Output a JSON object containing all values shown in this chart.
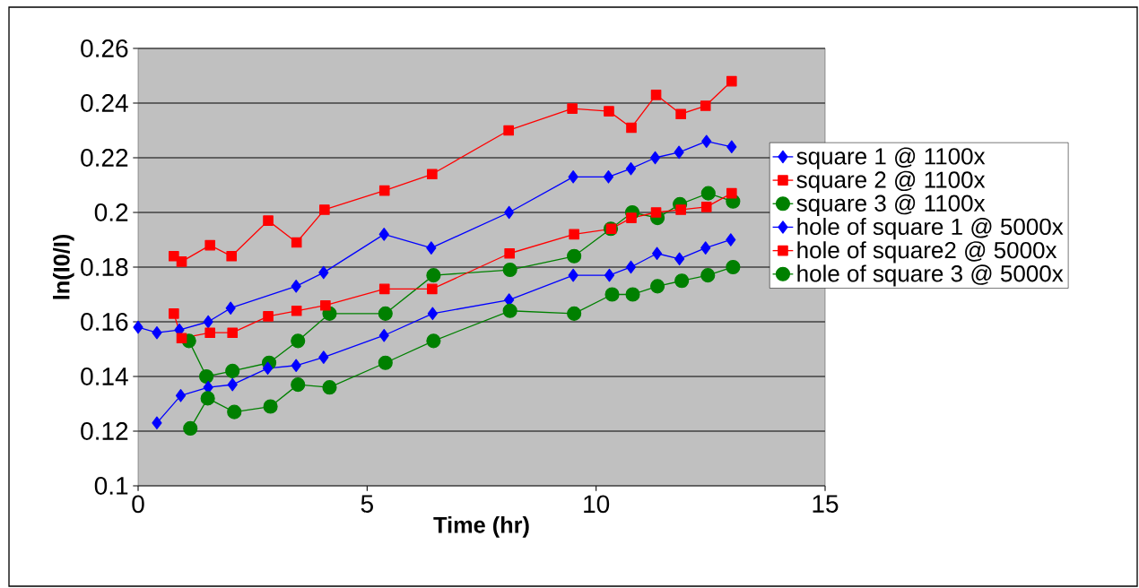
{
  "chart_data": {
    "type": "line",
    "xlabel": "Time (hr)",
    "ylabel": "ln(I0/I)",
    "xlim": [
      0,
      15
    ],
    "xticks": [
      0,
      5,
      10,
      15
    ],
    "ylim": [
      0.1,
      0.26
    ],
    "yticks": [
      0.1,
      0.12,
      0.14,
      0.16,
      0.18,
      0.2,
      0.22,
      0.24,
      0.26
    ],
    "grid": "y",
    "legend": "right",
    "series": [
      {
        "name": "square 1 @ 1100x",
        "color": "#0000ff",
        "marker": "diamond",
        "x": [
          0,
          0.41,
          0.9,
          1.53,
          2.02,
          3.45,
          4.05,
          5.37,
          6.4,
          8.1,
          9.5,
          10.27,
          10.76,
          11.29,
          11.81,
          12.41,
          12.96
        ],
        "values": [
          0.158,
          0.156,
          0.157,
          0.16,
          0.165,
          0.173,
          0.178,
          0.192,
          0.187,
          0.2,
          0.213,
          0.213,
          0.216,
          0.22,
          0.222,
          0.226,
          0.224
        ]
      },
      {
        "name": "square 2 @ 1100x",
        "color": "#ff0000",
        "marker": "square",
        "x": [
          0.78,
          0.95,
          1.57,
          2.04,
          2.84,
          3.46,
          4.07,
          5.38,
          6.42,
          8.09,
          9.48,
          10.28,
          10.77,
          11.31,
          11.85,
          12.39,
          12.96
        ],
        "values": [
          0.184,
          0.182,
          0.188,
          0.184,
          0.197,
          0.189,
          0.201,
          0.208,
          0.214,
          0.23,
          0.238,
          0.237,
          0.231,
          0.243,
          0.236,
          0.239,
          0.248
        ]
      },
      {
        "name": "square 3 @ 1100x",
        "color": "#008000",
        "marker": "circle",
        "x": [
          1.11,
          1.49,
          2.06,
          2.86,
          3.49,
          4.18,
          5.4,
          6.45,
          8.12,
          9.52,
          10.32,
          10.79,
          11.34,
          11.83,
          12.45,
          12.99
        ],
        "values": [
          0.153,
          0.14,
          0.142,
          0.145,
          0.153,
          0.163,
          0.163,
          0.177,
          0.179,
          0.184,
          0.194,
          0.2,
          0.198,
          0.203,
          0.207,
          0.204
        ]
      },
      {
        "name": "hole of square 1 @ 5000x",
        "color": "#0000ff",
        "marker": "diamond",
        "x": [
          0.41,
          0.93,
          1.53,
          2.06,
          2.83,
          3.45,
          4.05,
          5.37,
          6.43,
          8.1,
          9.5,
          10.29,
          10.76,
          11.33,
          11.82,
          12.39,
          12.94
        ],
        "values": [
          0.123,
          0.133,
          0.136,
          0.137,
          0.143,
          0.144,
          0.147,
          0.155,
          0.163,
          0.168,
          0.177,
          0.177,
          0.18,
          0.185,
          0.183,
          0.187,
          0.19
        ]
      },
      {
        "name": "hole of square2 @ 5000x",
        "color": "#ff0000",
        "marker": "square",
        "x": [
          0.78,
          0.95,
          1.57,
          2.06,
          2.84,
          3.46,
          4.09,
          5.38,
          6.42,
          8.11,
          9.52,
          10.33,
          10.77,
          11.31,
          11.85,
          12.41,
          12.96
        ],
        "values": [
          0.163,
          0.154,
          0.156,
          0.156,
          0.162,
          0.164,
          0.166,
          0.172,
          0.172,
          0.185,
          0.192,
          0.194,
          0.198,
          0.2,
          0.201,
          0.202,
          0.207
        ]
      },
      {
        "name": "hole of square 3 @ 5000x",
        "color": "#008000",
        "marker": "circle",
        "x": [
          1.14,
          1.52,
          2.1,
          2.89,
          3.49,
          4.18,
          5.4,
          6.45,
          8.12,
          9.52,
          10.35,
          10.8,
          11.34,
          11.87,
          12.44,
          12.99
        ],
        "values": [
          0.121,
          0.132,
          0.127,
          0.129,
          0.137,
          0.136,
          0.145,
          0.153,
          0.164,
          0.163,
          0.17,
          0.17,
          0.173,
          0.175,
          0.177,
          0.18
        ]
      }
    ]
  }
}
